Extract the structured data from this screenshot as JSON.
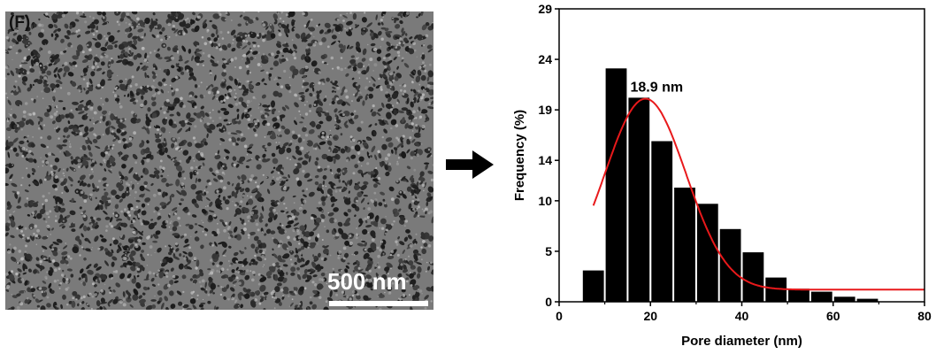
{
  "image": {
    "panel_label": "(F)",
    "scale_bar_label": "500 nm"
  },
  "colors": {
    "bar": "#000000",
    "fit_curve": "#e8191b",
    "sem_background": "#7a7a7a",
    "arrow": "#000000"
  },
  "icons": {
    "arrow": "arrow-right-icon"
  },
  "chart_data": {
    "type": "bar",
    "title": "",
    "xlabel": "Pore diameter (nm)",
    "ylabel": "Frequency (%)",
    "xlim": [
      0,
      80
    ],
    "ylim": [
      0,
      29
    ],
    "xticks": [
      0,
      20,
      40,
      60,
      80
    ],
    "yticks": [
      0,
      5,
      10,
      14,
      19,
      24,
      29
    ],
    "bin_width": 5,
    "x": [
      7.5,
      12.5,
      17.5,
      22.5,
      27.5,
      32.5,
      37.5,
      42.5,
      47.5,
      52.5,
      57.5,
      62.5,
      67.5,
      72.5,
      77.5
    ],
    "values": [
      3.1,
      23.1,
      20.2,
      15.9,
      11.3,
      9.7,
      7.2,
      4.9,
      2.4,
      1.3,
      1.0,
      0.5,
      0.3,
      0,
      0
    ],
    "fit": {
      "type": "gaussian",
      "center": 18.9,
      "peak": 20.1,
      "offset": 1.2,
      "sigma": 8.9,
      "x_range": [
        7.5,
        80
      ]
    },
    "annotations": [
      {
        "text": "18.9 nm",
        "x": 18.9,
        "y": 20.8
      }
    ],
    "grid": false,
    "legend": "none"
  }
}
